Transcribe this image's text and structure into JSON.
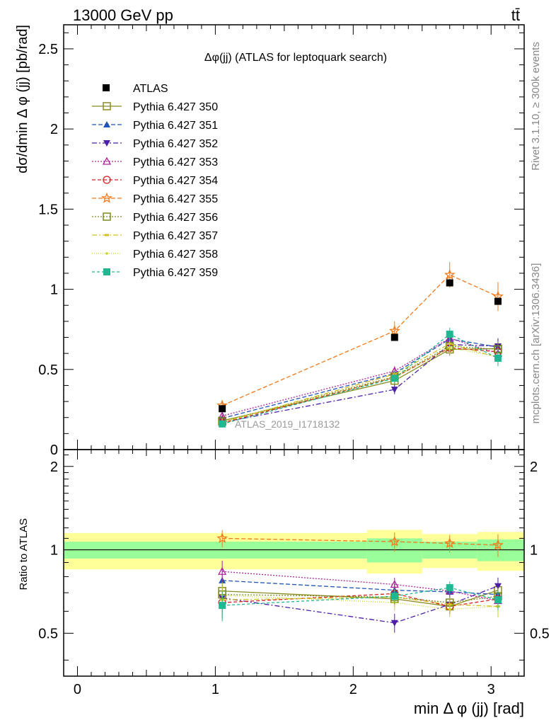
{
  "header": {
    "left_label": "13000 GeV pp",
    "right_label": "tt̄"
  },
  "side_labels": {
    "right_top": "Rivet 3.1.10, ≥ 300k events",
    "right_bottom": "mcplots.cern.ch [arXiv:1306.3436]"
  },
  "chart_data": {
    "type": "scatter",
    "title": "Δφ(jj) (ATLAS for leptoquark search)",
    "watermark": "ATLAS_2019_I1718132",
    "xlabel": "min Δ φ (jj) [rad]",
    "ylabel": "dσ/dmin Δ φ (jj) [pb/rad]",
    "ratio_ylabel": "Ratio to ATLAS",
    "xlim": [
      -0.1,
      3.24
    ],
    "ylim": [
      0,
      2.65
    ],
    "ratio_ylim": [
      0.35,
      2.3
    ],
    "x_ticks": [
      "0",
      "1",
      "2",
      "3"
    ],
    "y_ticks": [
      "0",
      "0.5",
      "1",
      "1.5",
      "2",
      "2.5"
    ],
    "ratio_y_ticks": [
      "0.5",
      "1",
      "2"
    ],
    "legend_position": "top-left",
    "bins": [
      {
        "lo": -0.1,
        "hi": 2.1
      },
      {
        "lo": 2.1,
        "hi": 2.5
      },
      {
        "lo": 2.5,
        "hi": 2.9
      },
      {
        "lo": 2.9,
        "hi": 3.24
      }
    ],
    "x": [
      1.05,
      2.3,
      2.7,
      3.05
    ],
    "data": {
      "name": "ATLAS",
      "values": [
        0.255,
        0.7,
        1.04,
        0.925
      ],
      "band_inner": [
        0.07,
        0.1,
        0.07,
        0.09
      ],
      "band_outer": [
        0.15,
        0.18,
        0.14,
        0.16
      ]
    },
    "series": [
      {
        "name": "Pythia 6.427 350",
        "color": "#8b8b20",
        "dash": "",
        "marker": "square-open",
        "values": [
          0.18,
          0.43,
          0.625,
          0.63
        ],
        "ratio": [
          0.71,
          0.665,
          0.625,
          0.715
        ],
        "err": [
          0.02,
          0.03,
          0.04,
          0.05
        ]
      },
      {
        "name": "Pythia 6.427 351",
        "color": "#1f55b4",
        "dash": "6,3",
        "marker": "triangle-up",
        "values": [
          0.195,
          0.475,
          0.69,
          0.64
        ],
        "ratio": [
          0.775,
          0.715,
          0.705,
          0.69
        ],
        "err": [
          0.02,
          0.03,
          0.04,
          0.05
        ]
      },
      {
        "name": "Pythia 6.427 352",
        "color": "#4b1fa8",
        "dash": "7,3,2,3",
        "marker": "triangle-down",
        "values": [
          0.17,
          0.375,
          0.655,
          0.645
        ],
        "ratio": [
          0.67,
          0.545,
          0.635,
          0.74
        ],
        "err": [
          0.02,
          0.03,
          0.04,
          0.05
        ]
      },
      {
        "name": "Pythia 6.427 353",
        "color": "#b0209c",
        "dash": "2,2",
        "marker": "triangle-open",
        "values": [
          0.21,
          0.49,
          0.695,
          0.6
        ],
        "ratio": [
          0.835,
          0.75,
          0.71,
          0.655
        ],
        "err": [
          0.02,
          0.03,
          0.04,
          0.05
        ]
      },
      {
        "name": "Pythia 6.427 354",
        "color": "#d62020",
        "dash": "5,3",
        "marker": "circle-open",
        "values": [
          0.165,
          0.45,
          0.635,
          0.61
        ],
        "ratio": [
          0.645,
          0.695,
          0.625,
          0.665
        ],
        "err": [
          0.02,
          0.03,
          0.04,
          0.05
        ]
      },
      {
        "name": "Pythia 6.427 355",
        "color": "#f07a1a",
        "dash": "6,3",
        "marker": "star-open",
        "values": [
          0.275,
          0.74,
          1.09,
          0.955
        ],
        "ratio": [
          1.1,
          1.07,
          1.055,
          1.04
        ],
        "err": [
          0.02,
          0.06,
          0.08,
          0.09
        ]
      },
      {
        "name": "Pythia 6.427 356",
        "color": "#7a8a1a",
        "dash": "2,2",
        "marker": "square-open",
        "values": [
          0.175,
          0.455,
          0.645,
          0.625
        ],
        "ratio": [
          0.69,
          0.675,
          0.645,
          0.68
        ],
        "err": [
          0.02,
          0.03,
          0.04,
          0.05
        ]
      },
      {
        "name": "Pythia 6.427 357",
        "color": "#d0c020",
        "dash": "7,3,2,3",
        "marker": "dash",
        "values": [
          0.17,
          0.47,
          0.66,
          0.575
        ],
        "ratio": [
          0.66,
          0.675,
          0.635,
          0.625
        ],
        "err": [
          0.02,
          0.03,
          0.04,
          0.05
        ]
      },
      {
        "name": "Pythia 6.427 358",
        "color": "#c8d82a",
        "dash": "1,2",
        "marker": "dot",
        "values": [
          0.175,
          0.45,
          0.635,
          0.58
        ],
        "ratio": [
          0.685,
          0.645,
          0.61,
          0.625
        ],
        "err": [
          0.02,
          0.03,
          0.04,
          0.05
        ]
      },
      {
        "name": "Pythia 6.427 359",
        "color": "#20b890",
        "dash": "4,3",
        "marker": "square",
        "values": [
          0.16,
          0.445,
          0.72,
          0.57
        ],
        "ratio": [
          0.63,
          0.68,
          0.73,
          0.66
        ],
        "err": [
          0.02,
          0.03,
          0.04,
          0.05
        ]
      }
    ]
  }
}
